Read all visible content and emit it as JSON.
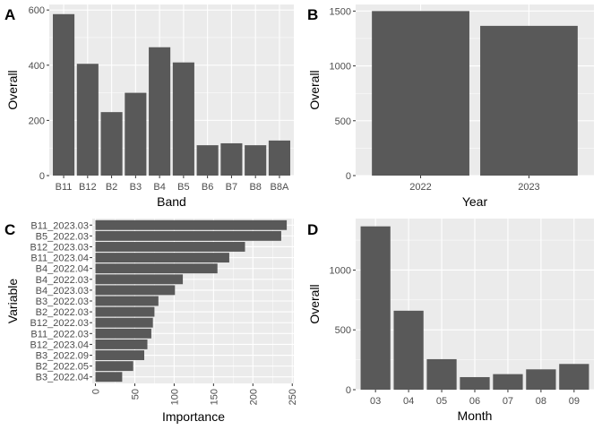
{
  "colors": {
    "panel_background": "#ebebeb",
    "bar_fill": "#595959",
    "gridline": "#ffffff",
    "tick_text": "#4d4d4d"
  },
  "chart_data": [
    {
      "panel": "A",
      "type": "bar",
      "orientation": "vertical",
      "xlabel": "Band",
      "ylabel": "Overall",
      "categories": [
        "B11",
        "B12",
        "B2",
        "B3",
        "B4",
        "B5",
        "B6",
        "B7",
        "B8",
        "B8A"
      ],
      "values": [
        585,
        405,
        230,
        300,
        465,
        410,
        110,
        117,
        110,
        127
      ],
      "ylim": [
        0,
        620
      ],
      "yticks": [
        0,
        200,
        400,
        600
      ],
      "grid": true
    },
    {
      "panel": "B",
      "type": "bar",
      "orientation": "vertical",
      "xlabel": "Year",
      "ylabel": "Overall",
      "categories": [
        "2022",
        "2023"
      ],
      "values": [
        1500,
        1365
      ],
      "ylim": [
        0,
        1560
      ],
      "yticks": [
        0,
        500,
        1000,
        1500
      ],
      "grid": true
    },
    {
      "panel": "C",
      "type": "bar",
      "orientation": "horizontal",
      "xlabel": "Importance",
      "ylabel": "Variable",
      "categories": [
        "B11_2023.03",
        "B5_2022.03",
        "B12_2023.03",
        "B11_2023.04",
        "B4_2022.04",
        "B4_2022.03",
        "B4_2023.03",
        "B3_2022.03",
        "B2_2022.03",
        "B12_2022.03",
        "B11_2022.03",
        "B12_2023.04",
        "B3_2022.09",
        "B2_2022.05",
        "B3_2022.04"
      ],
      "values": [
        243,
        236,
        190,
        170,
        155,
        111,
        101,
        80,
        75,
        73,
        71,
        66,
        62,
        48,
        34
      ],
      "xlim": [
        -4,
        252
      ],
      "xticks": [
        0,
        50,
        100,
        150,
        200,
        250
      ],
      "grid": true
    },
    {
      "panel": "D",
      "type": "bar",
      "orientation": "vertical",
      "xlabel": "Month",
      "ylabel": "Overall",
      "categories": [
        "03",
        "04",
        "05",
        "06",
        "07",
        "08",
        "09"
      ],
      "values": [
        1365,
        660,
        255,
        105,
        130,
        170,
        215
      ],
      "ylim": [
        0,
        1430
      ],
      "yticks": [
        0,
        500,
        1000
      ],
      "grid": true
    }
  ]
}
